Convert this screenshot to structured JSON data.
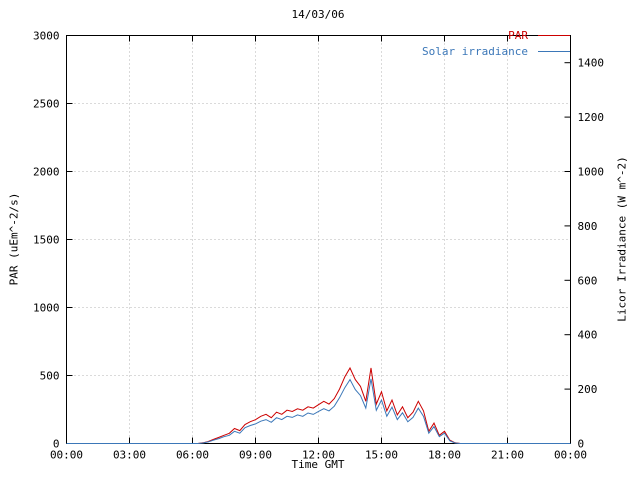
{
  "title": "14/03/06",
  "axes": {
    "xlabel": "Time GMT",
    "ylabel_left": "PAR (uEm^-2/s)",
    "ylabel_right": "Licor Irradiance (W m^-2)"
  },
  "legend": {
    "items": [
      "PAR",
      "Solar irradiance"
    ]
  },
  "colors": {
    "par": "#cc0000",
    "solar": "#3b77b8",
    "grid": "#b4b4b4",
    "border": "#000000"
  },
  "chart_data": {
    "type": "line",
    "title": "14/03/06",
    "xlabel": "Time GMT",
    "ylabel_left": "PAR (uEm^-2/s)",
    "ylabel_right": "Licor Irradiance (W m^-2)",
    "xlim_hours": [
      0,
      24
    ],
    "ylim_left": [
      0,
      3000
    ],
    "ylim_right": [
      0,
      1500
    ],
    "grid": true,
    "legend_position": "top-right",
    "xticks": {
      "values": [
        0,
        3,
        6,
        9,
        12,
        15,
        18,
        21,
        24
      ],
      "labels": [
        "00:00",
        "03:00",
        "06:00",
        "09:00",
        "12:00",
        "15:00",
        "18:00",
        "21:00",
        "00:00"
      ]
    },
    "yticks_left": [
      0,
      500,
      1000,
      1500,
      2000,
      2500,
      3000
    ],
    "yticks_right": [
      0,
      200,
      400,
      600,
      800,
      1000,
      1200,
      1400
    ],
    "x_hours": [
      0,
      0.25,
      0.5,
      0.75,
      1,
      1.25,
      1.5,
      1.75,
      2,
      2.25,
      2.5,
      2.75,
      3,
      3.25,
      3.5,
      3.75,
      4,
      4.25,
      4.5,
      4.75,
      5,
      5.25,
      5.5,
      5.75,
      6,
      6.25,
      6.5,
      6.75,
      7,
      7.25,
      7.5,
      7.75,
      8,
      8.25,
      8.5,
      8.75,
      9,
      9.25,
      9.5,
      9.75,
      10,
      10.25,
      10.5,
      10.75,
      11,
      11.25,
      11.5,
      11.75,
      12,
      12.25,
      12.5,
      12.75,
      13,
      13.25,
      13.5,
      13.75,
      14,
      14.25,
      14.5,
      14.75,
      15,
      15.25,
      15.5,
      15.75,
      16,
      16.25,
      16.5,
      16.75,
      17,
      17.25,
      17.5,
      17.75,
      18,
      18.25,
      18.5,
      18.75,
      19,
      19.25,
      19.5,
      19.75,
      20,
      20.25,
      20.5,
      20.75,
      21,
      21.25,
      21.5,
      21.75,
      22,
      22.25,
      22.5,
      22.75,
      23,
      23.25,
      23.5,
      23.75,
      24
    ],
    "series": [
      {
        "name": "PAR",
        "axis": "left",
        "units": "uEm^-2/s",
        "color": "#cc0000",
        "values": [
          0,
          0,
          0,
          0,
          0,
          0,
          0,
          0,
          0,
          0,
          0,
          0,
          0,
          0,
          0,
          0,
          0,
          0,
          0,
          0,
          0,
          0,
          0,
          0,
          0,
          0,
          5,
          15,
          30,
          45,
          60,
          75,
          110,
          95,
          140,
          160,
          175,
          200,
          215,
          190,
          230,
          215,
          245,
          235,
          255,
          245,
          270,
          260,
          285,
          310,
          290,
          330,
          400,
          490,
          555,
          470,
          420,
          310,
          555,
          290,
          380,
          240,
          320,
          210,
          270,
          190,
          230,
          310,
          240,
          90,
          150,
          60,
          90,
          25,
          5,
          0,
          0,
          0,
          0,
          0,
          0,
          0,
          0,
          0,
          0,
          0,
          0,
          0,
          0,
          0,
          0,
          0,
          0,
          0,
          0,
          0,
          0
        ]
      },
      {
        "name": "Solar irradiance",
        "axis": "right",
        "units": "W m^-2",
        "color": "#3b77b8",
        "values": [
          0,
          0,
          0,
          0,
          0,
          0,
          0,
          0,
          0,
          0,
          0,
          0,
          0,
          0,
          0,
          0,
          0,
          0,
          0,
          0,
          0,
          0,
          0,
          0,
          0,
          0,
          2,
          6,
          12,
          18,
          25,
          30,
          45,
          38,
          58,
          66,
          72,
          82,
          88,
          78,
          95,
          88,
          100,
          96,
          105,
          100,
          112,
          107,
          118,
          128,
          120,
          137,
          168,
          205,
          235,
          198,
          176,
          130,
          238,
          122,
          160,
          100,
          134,
          88,
          113,
          80,
          96,
          130,
          100,
          38,
          62,
          25,
          38,
          10,
          2,
          0,
          0,
          0,
          0,
          0,
          0,
          0,
          0,
          0,
          0,
          0,
          0,
          0,
          0,
          0,
          0,
          0,
          0,
          0,
          0,
          0,
          0
        ]
      }
    ]
  }
}
